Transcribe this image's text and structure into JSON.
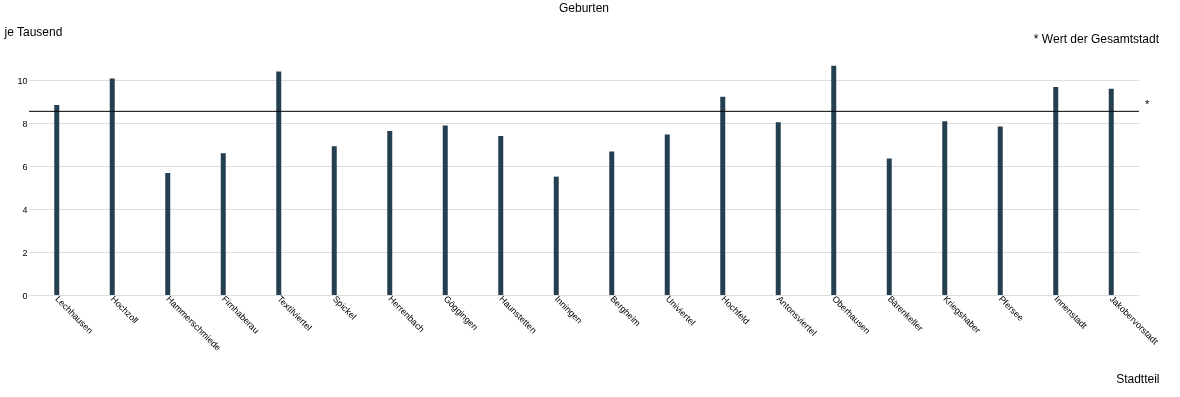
{
  "chart_data": {
    "type": "bar",
    "title": "Geburten",
    "xlabel": "Stadtteil",
    "ylabel": "je Tausend",
    "annotations": [
      "* Wert der Gesamtstadt"
    ],
    "categories": [
      "Lechhausen",
      "Hochzoll",
      "Hammerschmiede",
      "Firnhaberau",
      "Textilviertel",
      "Spickel",
      "Herrenbach",
      "Göggingen",
      "Haunstetten",
      "Inningen",
      "Bergheim",
      "Univiertel",
      "Hochfeld",
      "Antonsviertel",
      "Oberhausen",
      "Bärenkeller",
      "Kriegshaber",
      "Pfersee",
      "Innenstadt",
      "Jakobervorstadt"
    ],
    "values": [
      8.84,
      10.08,
      5.68,
      6.6,
      10.4,
      6.92,
      7.64,
      7.89,
      7.4,
      5.51,
      6.68,
      7.47,
      9.23,
      8.04,
      10.67,
      6.36,
      8.09,
      7.84,
      9.68,
      9.6
    ],
    "color": "#253f52",
    "ylim": [
      0,
      10.8
    ],
    "yticks": [
      0,
      2,
      4,
      6,
      8,
      10
    ],
    "grid": "y",
    "ref_lines": [
      {
        "axis": "y",
        "value": 8.55,
        "label": "*",
        "color": "#000000"
      }
    ]
  }
}
